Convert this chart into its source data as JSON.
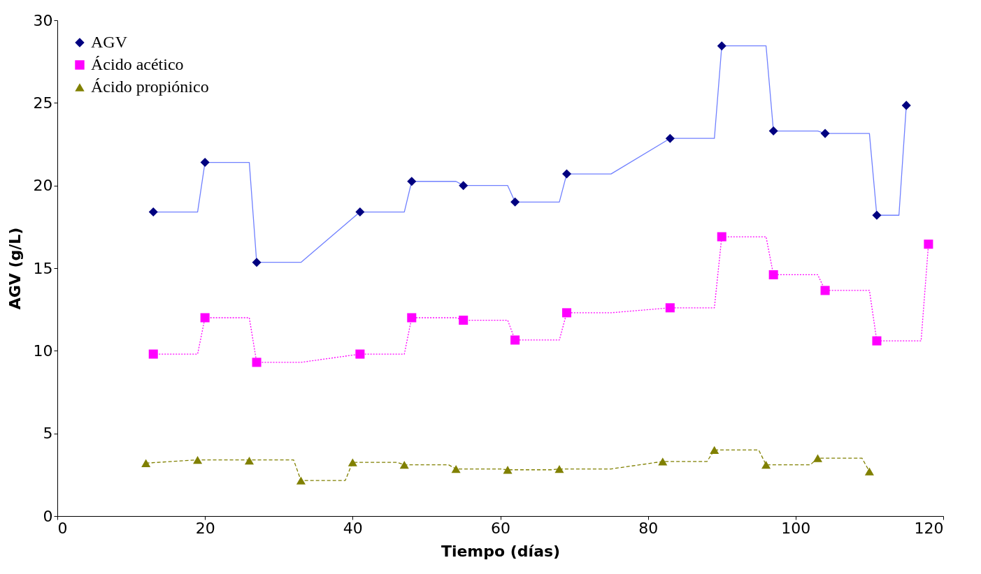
{
  "chart_data": {
    "type": "scatter",
    "xlabel": "Tiempo (días)",
    "ylabel": "AGV (g/L)",
    "xlim": [
      0,
      120
    ],
    "xticks": [
      0,
      20,
      40,
      60,
      80,
      100,
      120
    ],
    "ylim": [
      0,
      30
    ],
    "yticks": [
      0,
      5,
      10,
      15,
      20,
      25,
      30
    ],
    "grid": false,
    "legend": "top left",
    "series": [
      {
        "type": "line",
        "color": "#7080ff",
        "line_style": "solid",
        "marker": "none",
        "x": [
          13,
          19,
          20,
          26,
          27,
          33,
          41,
          47,
          48,
          54,
          55,
          61,
          62,
          68,
          69,
          75,
          83,
          89,
          90,
          96,
          97,
          103,
          104,
          110,
          111,
          114,
          115
        ],
        "values": [
          18.4,
          18.4,
          21.4,
          21.4,
          15.35,
          15.35,
          18.4,
          18.4,
          20.25,
          20.25,
          20.0,
          20.0,
          19.0,
          19.0,
          20.7,
          20.7,
          22.85,
          22.85,
          28.45,
          28.45,
          23.3,
          23.3,
          23.15,
          23.15,
          18.2,
          18.2,
          24.85
        ]
      },
      {
        "type": "line",
        "color": "#ff00ff",
        "line_style": "dotted",
        "marker": "none",
        "x": [
          13,
          19,
          20,
          26,
          27,
          33,
          41,
          47,
          48,
          54,
          55,
          61,
          62,
          68,
          69,
          75,
          83,
          89,
          90,
          96,
          97,
          103,
          104,
          110,
          111,
          117,
          118
        ],
        "values": [
          9.8,
          9.8,
          12.0,
          12.0,
          9.3,
          9.3,
          9.8,
          9.8,
          12.0,
          12.0,
          11.85,
          11.85,
          10.65,
          10.65,
          12.3,
          12.3,
          12.6,
          12.6,
          16.9,
          16.9,
          14.6,
          14.6,
          13.65,
          13.65,
          10.6,
          10.6,
          16.45
        ]
      },
      {
        "type": "line",
        "color": "#808000",
        "line_style": "dashed",
        "marker": "none",
        "x": [
          12,
          19,
          26,
          32,
          33,
          39,
          40,
          46,
          47,
          53,
          54,
          60,
          61,
          67,
          68,
          75,
          82,
          88,
          89,
          95,
          96,
          102,
          103,
          109,
          110
        ],
        "values": [
          3.2,
          3.4,
          3.4,
          3.4,
          2.15,
          2.15,
          3.25,
          3.25,
          3.1,
          3.1,
          2.85,
          2.85,
          2.8,
          2.8,
          2.85,
          2.85,
          3.3,
          3.3,
          4.0,
          4.0,
          3.1,
          3.1,
          3.5,
          3.5,
          2.7
        ]
      },
      {
        "name": "AGV",
        "color": "#000080",
        "marker": "diamond",
        "x": [
          13,
          20,
          27,
          41,
          48,
          55,
          62,
          69,
          83,
          90,
          97,
          104,
          111,
          115
        ],
        "values": [
          18.4,
          21.4,
          15.35,
          18.4,
          20.25,
          20.0,
          19.0,
          20.7,
          22.85,
          28.45,
          23.3,
          23.15,
          18.2,
          24.85
        ]
      },
      {
        "name": "Ácido acético",
        "color": "#ff00ff",
        "marker": "square",
        "x": [
          13,
          20,
          27,
          41,
          48,
          55,
          62,
          69,
          83,
          90,
          97,
          104,
          111,
          118
        ],
        "values": [
          9.8,
          12.0,
          9.3,
          9.8,
          12.0,
          11.85,
          10.65,
          12.3,
          12.6,
          16.9,
          14.6,
          13.65,
          10.6,
          16.45
        ]
      },
      {
        "name": "Ácido propiónico",
        "color": "#808000",
        "marker": "triangle",
        "x": [
          12,
          19,
          26,
          33,
          40,
          47,
          54,
          61,
          68,
          82,
          89,
          96,
          103,
          110
        ],
        "values": [
          3.2,
          3.4,
          3.35,
          2.15,
          3.25,
          3.1,
          2.85,
          2.8,
          2.85,
          3.3,
          4.0,
          3.1,
          3.5,
          2.7
        ]
      }
    ]
  }
}
